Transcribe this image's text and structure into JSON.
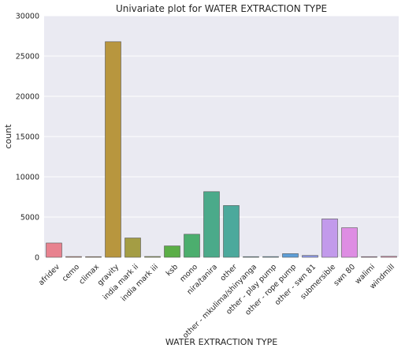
{
  "chart_data": {
    "type": "bar",
    "title": "Univariate plot for WATER EXTRACTION TYPE",
    "xlabel": "WATER EXTRACTION TYPE",
    "ylabel": "count",
    "ylim": [
      0,
      30000
    ],
    "yticks": [
      "0",
      "5000",
      "10000",
      "15000",
      "20000",
      "25000",
      "30000"
    ],
    "grid": true,
    "background_color": "#EAEAF2",
    "grid_color": "#FFFFFF",
    "categories": [
      "afridev",
      "cemo",
      "climax",
      "gravity",
      "india mark ii",
      "india mark iii",
      "ksb",
      "mono",
      "nira/tanira",
      "other",
      "other - mkulima/shinyanga",
      "other - play pump",
      "other - rope pump",
      "other - swn 81",
      "submersible",
      "swn 80",
      "walimi",
      "windmill"
    ],
    "values": [
      1770,
      90,
      32,
      26780,
      2400,
      98,
      1415,
      2865,
      8154,
      6430,
      2,
      85,
      451,
      229,
      4764,
      3670,
      48,
      117
    ],
    "colors": [
      "#E8828F",
      "#E38A6E",
      "#D49A56",
      "#B8963E",
      "#A49D44",
      "#8EA246",
      "#5BAE47",
      "#4CAE6E",
      "#4BAA8A",
      "#4CA99C",
      "#4EA8AE",
      "#54A4C3",
      "#5E9FD8",
      "#8E99E8",
      "#C29AEB",
      "#DE8DE3",
      "#E484C6",
      "#E888AF"
    ]
  }
}
